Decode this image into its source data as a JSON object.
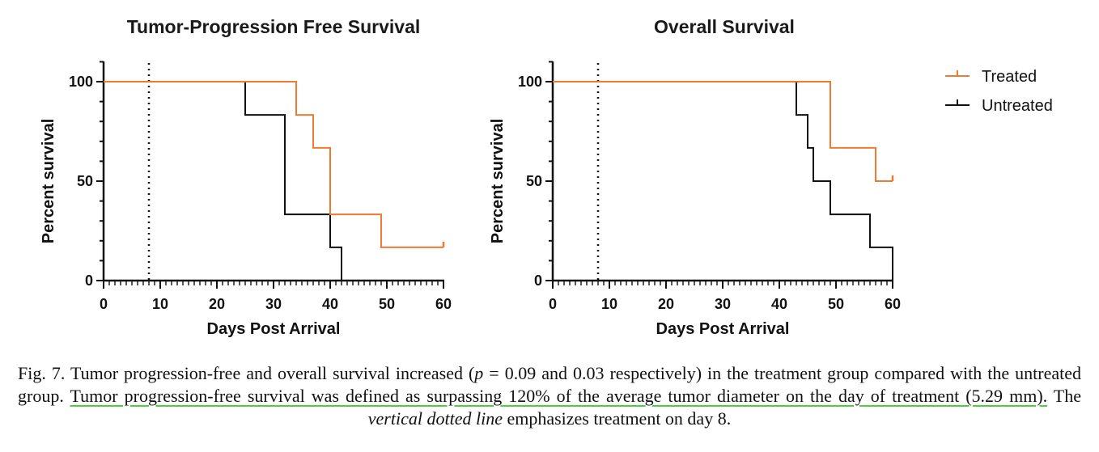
{
  "colors": {
    "treated": "#f07a30",
    "untreated": "#111111",
    "axis": "#111111"
  },
  "legend": {
    "position": "top-right",
    "items": [
      {
        "label": "Treated",
        "color_key": "treated"
      },
      {
        "label": "Untreated",
        "color_key": "untreated"
      }
    ]
  },
  "chart_data": [
    {
      "type": "line",
      "step": true,
      "title": "Tumor-Progression Free Survival",
      "xlabel": "Days Post Arrival",
      "ylabel": "Percent survival",
      "xlim": [
        0,
        60
      ],
      "ylim": [
        0,
        100
      ],
      "xticks": [
        "0",
        "10",
        "20",
        "30",
        "40",
        "50",
        "60"
      ],
      "yticks": [
        "0",
        "50",
        "100"
      ],
      "vline_x": 8,
      "series": [
        {
          "name": "Treated",
          "color_key": "treated",
          "censored_at": [
            60
          ],
          "points": [
            [
              0,
              100
            ],
            [
              34,
              100
            ],
            [
              34,
              83.3
            ],
            [
              37,
              83.3
            ],
            [
              37,
              66.7
            ],
            [
              40,
              66.7
            ],
            [
              40,
              33.3
            ],
            [
              49,
              33.3
            ],
            [
              49,
              16.7
            ],
            [
              60,
              16.7
            ]
          ]
        },
        {
          "name": "Untreated",
          "color_key": "untreated",
          "censored_at": [],
          "points": [
            [
              0,
              100
            ],
            [
              25,
              100
            ],
            [
              25,
              83.3
            ],
            [
              32,
              83.3
            ],
            [
              32,
              33.3
            ],
            [
              40,
              33.3
            ],
            [
              40,
              16.7
            ],
            [
              42,
              16.7
            ],
            [
              42,
              0
            ]
          ]
        }
      ]
    },
    {
      "type": "line",
      "step": true,
      "title": "Overall Survival",
      "xlabel": "Days Post Arrival",
      "ylabel": "Percent survival",
      "xlim": [
        0,
        60
      ],
      "ylim": [
        0,
        100
      ],
      "xticks": [
        "0",
        "10",
        "20",
        "30",
        "40",
        "50",
        "60"
      ],
      "yticks": [
        "0",
        "50",
        "100"
      ],
      "vline_x": 8,
      "series": [
        {
          "name": "Treated",
          "color_key": "treated",
          "censored_at": [
            60
          ],
          "points": [
            [
              0,
              100
            ],
            [
              49,
              100
            ],
            [
              49,
              66.7
            ],
            [
              57,
              66.7
            ],
            [
              57,
              50
            ],
            [
              60,
              50
            ]
          ]
        },
        {
          "name": "Untreated",
          "color_key": "untreated",
          "censored_at": [],
          "points": [
            [
              0,
              100
            ],
            [
              43,
              100
            ],
            [
              43,
              83.3
            ],
            [
              45,
              83.3
            ],
            [
              45,
              66.7
            ],
            [
              46,
              66.7
            ],
            [
              46,
              50
            ],
            [
              49,
              50
            ],
            [
              49,
              33.3
            ],
            [
              56,
              33.3
            ],
            [
              56,
              16.7
            ],
            [
              60,
              16.7
            ],
            [
              60,
              0
            ]
          ]
        }
      ]
    }
  ],
  "caption": {
    "part1": "Fig. 7.  Tumor progression-free and overall survival increased (",
    "p_symbol": "p",
    "part2": " = 0.09 and 0.03 respectively) in the treatment group compared with the untreated group. ",
    "highlight": "Tumor progression-free survival was defined as surpassing 120% of the average tumor diameter on the day of treatment (5.29 mm).",
    "part3": " The ",
    "italic_phrase": "vertical dotted line",
    "part4": " emphasizes treatment on day 8."
  }
}
